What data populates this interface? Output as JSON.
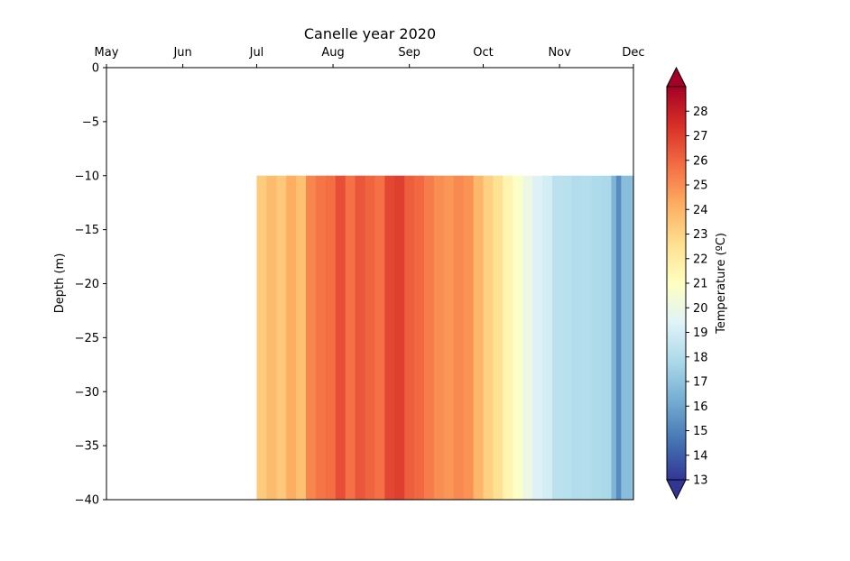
{
  "chart_data": {
    "type": "heatmap",
    "title": "Canelle year 2020",
    "xlabel": "",
    "ylabel": "Depth (m)",
    "colorbar_label": "Temperature (ºC)",
    "x_ticks": [
      "May",
      "Jun",
      "Jul",
      "Aug",
      "Sep",
      "Oct",
      "Nov",
      "Dec"
    ],
    "x_tick_days": [
      0,
      31,
      61,
      92,
      123,
      153,
      184,
      214
    ],
    "xlim_days": [
      0,
      214
    ],
    "x_position": "top",
    "y_ticks": [
      "0",
      "−5",
      "−10",
      "−15",
      "−20",
      "−25",
      "−30",
      "−35",
      "−40"
    ],
    "y_tick_values": [
      0,
      -5,
      -10,
      -15,
      -20,
      -25,
      -30,
      -35,
      -40
    ],
    "ylim": [
      -40,
      0
    ],
    "data_depth_range": [
      -40,
      -10
    ],
    "colorbar_ticks": [
      "13",
      "14",
      "15",
      "16",
      "17",
      "18",
      "19",
      "20",
      "21",
      "22",
      "23",
      "24",
      "25",
      "26",
      "27",
      "28"
    ],
    "colorbar_tick_values": [
      13,
      14,
      15,
      16,
      17,
      18,
      19,
      20,
      21,
      22,
      23,
      24,
      25,
      26,
      27,
      28
    ],
    "color_range": [
      13,
      29
    ],
    "colormap": [
      "#313695",
      "#4575b4",
      "#74add1",
      "#abd9e9",
      "#e0f3f8",
      "#ffffbf",
      "#fee090",
      "#fdae61",
      "#f46d43",
      "#d73027",
      "#a50026"
    ],
    "series": [
      {
        "date": "Jul 01",
        "temperature": 23.3
      },
      {
        "date": "Jul 05",
        "temperature": 23.8
      },
      {
        "date": "Jul 09",
        "temperature": 23.4
      },
      {
        "date": "Jul 13",
        "temperature": 24.2
      },
      {
        "date": "Jul 17",
        "temperature": 23.6
      },
      {
        "date": "Jul 21",
        "temperature": 25.2
      },
      {
        "date": "Jul 25",
        "temperature": 25.6
      },
      {
        "date": "Jul 29",
        "temperature": 25.8
      },
      {
        "date": "Aug 02",
        "temperature": 26.6
      },
      {
        "date": "Aug 06",
        "temperature": 25.7
      },
      {
        "date": "Aug 10",
        "temperature": 26.4
      },
      {
        "date": "Aug 14",
        "temperature": 26.0
      },
      {
        "date": "Aug 18",
        "temperature": 25.7
      },
      {
        "date": "Aug 22",
        "temperature": 26.8
      },
      {
        "date": "Aug 26",
        "temperature": 27.0
      },
      {
        "date": "Aug 30",
        "temperature": 26.2
      },
      {
        "date": "Sep 03",
        "temperature": 25.9
      },
      {
        "date": "Sep 07",
        "temperature": 25.4
      },
      {
        "date": "Sep 11",
        "temperature": 25.0
      },
      {
        "date": "Sep 15",
        "temperature": 24.8
      },
      {
        "date": "Sep 19",
        "temperature": 25.1
      },
      {
        "date": "Sep 23",
        "temperature": 24.9
      },
      {
        "date": "Sep 27",
        "temperature": 23.9
      },
      {
        "date": "Oct 01",
        "temperature": 23.1
      },
      {
        "date": "Oct 05",
        "temperature": 22.5
      },
      {
        "date": "Oct 09",
        "temperature": 21.5
      },
      {
        "date": "Oct 13",
        "temperature": 20.8
      },
      {
        "date": "Oct 17",
        "temperature": 20.0
      },
      {
        "date": "Oct 21",
        "temperature": 19.3
      },
      {
        "date": "Oct 25",
        "temperature": 19.0
      },
      {
        "date": "Oct 29",
        "temperature": 18.3
      },
      {
        "date": "Nov 02",
        "temperature": 18.2
      },
      {
        "date": "Nov 06",
        "temperature": 18.0
      },
      {
        "date": "Nov 10",
        "temperature": 18.1
      },
      {
        "date": "Nov 14",
        "temperature": 17.9
      },
      {
        "date": "Nov 18",
        "temperature": 17.8
      },
      {
        "date": "Nov 22",
        "temperature": 16.5
      },
      {
        "date": "Nov 24",
        "temperature": 15.2
      },
      {
        "date": "Nov 26",
        "temperature": 16.8
      },
      {
        "date": "Nov 30",
        "temperature": 17.0
      }
    ],
    "grid": false
  }
}
